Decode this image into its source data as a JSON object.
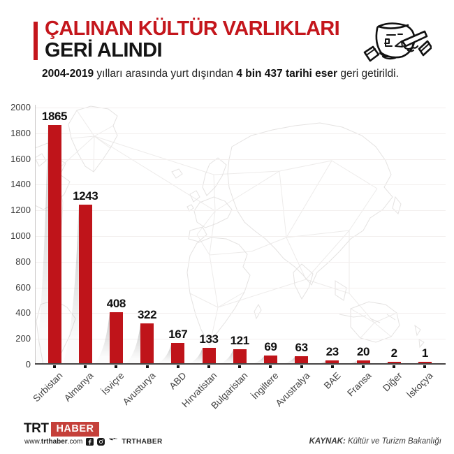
{
  "header": {
    "title_line1": "ÇALINAN KÜLTÜR VARLIKLARI",
    "title_line2": "GERİ ALINDI",
    "subtitle_segments": [
      {
        "text": "2004-2019",
        "bold": true
      },
      {
        "text": " yılları arasında yurt dışından ",
        "bold": false
      },
      {
        "text": "4 bin 437 tarihi eser",
        "bold": true
      },
      {
        "text": " geri getirildi.",
        "bold": false
      }
    ]
  },
  "chart_data": {
    "type": "bar",
    "title": "Çalınan kültür varlıkları geri alındı",
    "categories": [
      "Sırbistan",
      "Almanya",
      "İsviçre",
      "Avusturya",
      "ABD",
      "Hırvatistan",
      "Bulgaristan",
      "İngiltere",
      "Avustralya",
      "BAE",
      "Fransa",
      "Diğer",
      "İskoçya"
    ],
    "values": [
      1865,
      1243,
      408,
      322,
      167,
      133,
      121,
      69,
      63,
      23,
      20,
      2,
      1
    ],
    "total": 4437,
    "xlabel": "",
    "ylabel": "",
    "ylim": [
      0,
      2000
    ],
    "yticks": [
      0,
      200,
      400,
      600,
      800,
      1000,
      1200,
      1400,
      1600,
      1800,
      2000
    ],
    "grid": "faint-horizontal",
    "legend": "none",
    "bar_color": "#bf141a"
  },
  "footer": {
    "logo_trt": "TRT",
    "logo_haber": "HABER",
    "website_segments": [
      {
        "text": "www.",
        "bold": false
      },
      {
        "text": "trthaber",
        "bold": true
      },
      {
        "text": ".com",
        "bold": false
      }
    ],
    "social_icons": [
      "facebook-icon",
      "instagram-icon",
      "twitter-icon"
    ],
    "social_handle": "TRTHABER",
    "source_label": "KAYNAK:",
    "source_text": " Kültür ve Turizm Bakanlığı"
  },
  "colors": {
    "accent_red": "#c4161c",
    "bar_red": "#bf141a",
    "text_dark": "#1a1a1a",
    "axis_gray": "#474545"
  }
}
